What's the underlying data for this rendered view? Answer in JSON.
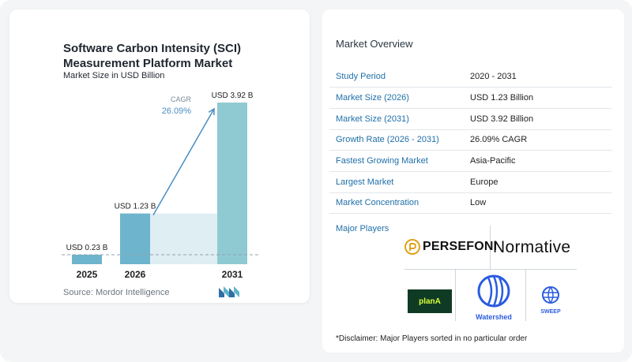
{
  "chart_data": {
    "type": "bar",
    "title": "Software Carbon Intensity (SCI)\nMeasurement Platform Market",
    "subtitle": "Market Size in USD Billion",
    "categories": [
      "2025",
      "2026",
      "2031"
    ],
    "values": [
      0.23,
      1.23,
      3.92
    ],
    "data_labels": [
      "USD 0.23 B",
      "USD 1.23 B",
      "USD 3.92 B"
    ],
    "cagr_label": "CAGR",
    "cagr_value": "26.09%",
    "ylim": [
      0,
      4.15
    ],
    "colors": {
      "bar": "#6eb4cd",
      "bar_last": "#8fcad2",
      "band": "#dfeef3",
      "arrow": "#4a8dc0",
      "dashed": "#8fa3b0"
    }
  },
  "source": "Source: Mordor Intelligence",
  "overview": {
    "title": "Market Overview",
    "rows": [
      {
        "label": "Study Period",
        "value": "2020 - 2031"
      },
      {
        "label": "Market Size (2026)",
        "value": "USD 1.23 Billion"
      },
      {
        "label": "Market Size (2031)",
        "value": "USD 3.92 Billion"
      },
      {
        "label": "Growth Rate (2026 - 2031)",
        "value": "26.09% CAGR"
      },
      {
        "label": "Fastest Growing Market",
        "value": "Asia-Pacific"
      },
      {
        "label": "Largest Market",
        "value": "Europe"
      },
      {
        "label": "Market Concentration",
        "value": "Low"
      }
    ]
  },
  "players": {
    "title": "Major Players",
    "persefoni": "PERSEFONI",
    "normative": "Normative",
    "plana": "planA",
    "watershed": "Watershed",
    "sweep": "SWEEP"
  },
  "disclaimer": "*Disclaimer: Major Players sorted in no particular order"
}
